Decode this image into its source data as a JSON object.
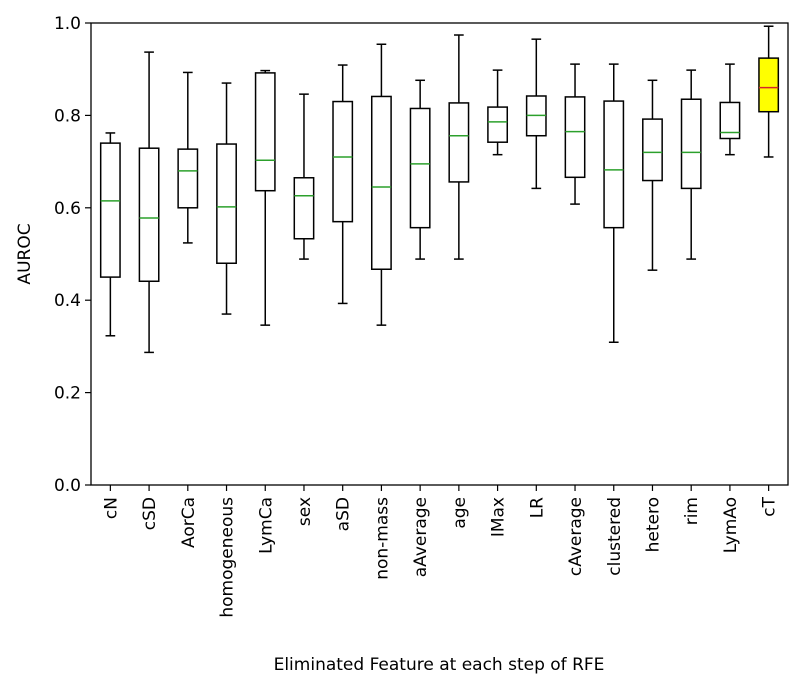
{
  "chart_data": {
    "type": "box",
    "xlabel": "Eliminated Feature at each step of RFE",
    "ylabel": "AUROC",
    "ylim": [
      0.0,
      1.0
    ],
    "yticks": [
      0.0,
      0.2,
      0.4,
      0.6,
      0.8,
      1.0
    ],
    "ytick_labels": [
      "0.0",
      "0.2",
      "0.4",
      "0.6",
      "0.8",
      "1.0"
    ],
    "grid": false,
    "colors": {
      "box_fill": "#ffffff",
      "median": "#2ca02c",
      "highlight_fill": "#ffff00",
      "highlight_median": "#d62728",
      "stroke": "#000000"
    },
    "categories": [
      "cN",
      "cSD",
      "AorCa",
      "homogeneous",
      "LymCa",
      "sex",
      "aSD",
      "non-mass",
      "aAverage",
      "age",
      "IMax",
      "LR",
      "cAverage",
      "clustered",
      "hetero",
      "rim",
      "LymAo",
      "cT"
    ],
    "boxes": [
      {
        "label": "cN",
        "whislo": 0.323,
        "q1": 0.45,
        "med": 0.615,
        "q3": 0.74,
        "whishi": 0.762
      },
      {
        "label": "cSD",
        "whislo": 0.287,
        "q1": 0.441,
        "med": 0.578,
        "q3": 0.729,
        "whishi": 0.937
      },
      {
        "label": "AorCa",
        "whislo": 0.524,
        "q1": 0.6,
        "med": 0.68,
        "q3": 0.727,
        "whishi": 0.893
      },
      {
        "label": "homogeneous",
        "whislo": 0.37,
        "q1": 0.48,
        "med": 0.602,
        "q3": 0.738,
        "whishi": 0.87
      },
      {
        "label": "LymCa",
        "whislo": 0.346,
        "q1": 0.637,
        "med": 0.703,
        "q3": 0.892,
        "whishi": 0.897
      },
      {
        "label": "sex",
        "whislo": 0.489,
        "q1": 0.533,
        "med": 0.626,
        "q3": 0.665,
        "whishi": 0.846
      },
      {
        "label": "aSD",
        "whislo": 0.393,
        "q1": 0.57,
        "med": 0.71,
        "q3": 0.83,
        "whishi": 0.909
      },
      {
        "label": "non-mass",
        "whislo": 0.346,
        "q1": 0.467,
        "med": 0.645,
        "q3": 0.841,
        "whishi": 0.954
      },
      {
        "label": "aAverage",
        "whislo": 0.489,
        "q1": 0.557,
        "med": 0.695,
        "q3": 0.815,
        "whishi": 0.876
      },
      {
        "label": "age",
        "whislo": 0.489,
        "q1": 0.656,
        "med": 0.756,
        "q3": 0.827,
        "whishi": 0.974
      },
      {
        "label": "IMax",
        "whislo": 0.715,
        "q1": 0.742,
        "med": 0.786,
        "q3": 0.818,
        "whishi": 0.898
      },
      {
        "label": "LR",
        "whislo": 0.642,
        "q1": 0.756,
        "med": 0.8,
        "q3": 0.842,
        "whishi": 0.965
      },
      {
        "label": "cAverage",
        "whislo": 0.608,
        "q1": 0.666,
        "med": 0.765,
        "q3": 0.84,
        "whishi": 0.911
      },
      {
        "label": "clustered",
        "whislo": 0.309,
        "q1": 0.557,
        "med": 0.682,
        "q3": 0.831,
        "whishi": 0.911
      },
      {
        "label": "hetero",
        "whislo": 0.465,
        "q1": 0.659,
        "med": 0.72,
        "q3": 0.792,
        "whishi": 0.876
      },
      {
        "label": "rim",
        "whislo": 0.489,
        "q1": 0.642,
        "med": 0.72,
        "q3": 0.835,
        "whishi": 0.898
      },
      {
        "label": "LymAo",
        "whislo": 0.715,
        "q1": 0.75,
        "med": 0.763,
        "q3": 0.828,
        "whishi": 0.911
      },
      {
        "label": "cT",
        "whislo": 0.71,
        "q1": 0.808,
        "med": 0.86,
        "q3": 0.924,
        "whishi": 0.993,
        "highlight": true
      }
    ]
  }
}
